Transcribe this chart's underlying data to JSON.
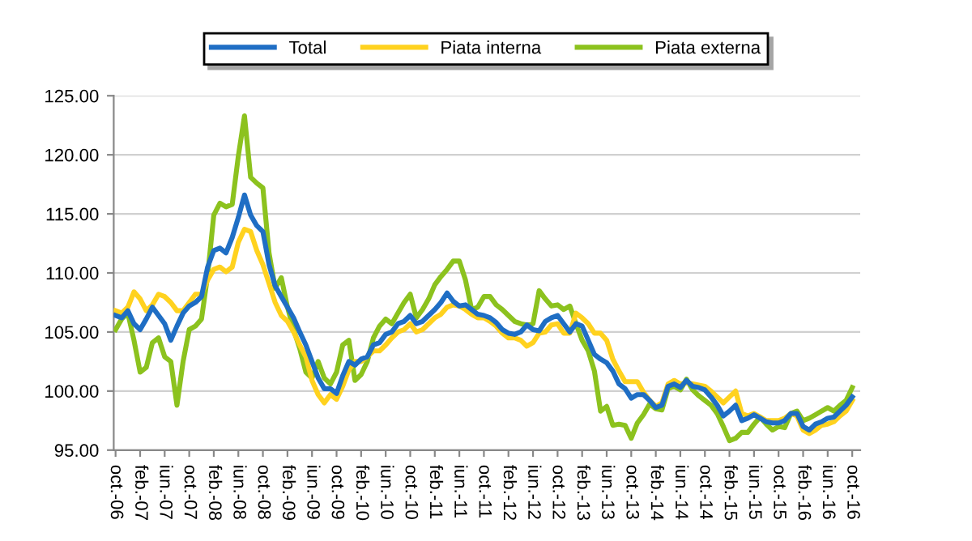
{
  "chart_data": {
    "type": "line",
    "categories": [
      "oct.-06",
      null,
      null,
      null,
      "feb.-07",
      null,
      null,
      null,
      "iun.-07",
      null,
      null,
      null,
      "oct.-07",
      null,
      null,
      null,
      "feb.-08",
      null,
      null,
      null,
      "iun.-08",
      null,
      null,
      null,
      "oct.-08",
      null,
      null,
      null,
      "feb.-09",
      null,
      null,
      null,
      "iun.-09",
      null,
      null,
      null,
      "oct.-09",
      null,
      null,
      null,
      "feb.-10",
      null,
      null,
      null,
      "iun.-10",
      null,
      null,
      null,
      "oct.-10",
      null,
      null,
      null,
      "feb.-11",
      null,
      null,
      null,
      "iun.-11",
      null,
      null,
      null,
      "oct.-11",
      null,
      null,
      null,
      "feb.-12",
      null,
      null,
      null,
      "iun.-12",
      null,
      null,
      null,
      "oct.-12",
      null,
      null,
      null,
      "feb.-13",
      null,
      null,
      null,
      "iun.-13",
      null,
      null,
      null,
      "oct.-13",
      null,
      null,
      null,
      "feb.-14",
      null,
      null,
      null,
      "iun.-14",
      null,
      null,
      null,
      "oct.-14",
      null,
      null,
      null,
      "feb.-15",
      null,
      null,
      null,
      "iun.-15",
      null,
      null,
      null,
      "oct.-15",
      null,
      null,
      null,
      "feb.-16",
      null,
      null,
      null,
      "iun.-16",
      null,
      null,
      null,
      "oct.-16"
    ],
    "series": [
      {
        "name": "Total",
        "color": "#1f6ec4",
        "values": [
          106.4,
          106.2,
          106.8,
          105.7,
          105.2,
          106.1,
          107.1,
          106.4,
          105.7,
          104.3,
          105.5,
          106.6,
          107.2,
          107.5,
          108.0,
          110.5,
          111.9,
          112.1,
          111.7,
          113.0,
          114.7,
          116.6,
          114.9,
          114.0,
          113.5,
          110.7,
          108.9,
          108.0,
          107.1,
          106.2,
          105.0,
          103.9,
          102.5,
          101.1,
          100.2,
          100.2,
          99.8,
          101.3,
          102.5,
          102.2,
          102.7,
          102.9,
          103.9,
          104.1,
          104.8,
          105.0,
          105.7,
          105.9,
          106.4,
          105.7,
          105.9,
          106.4,
          106.9,
          107.5,
          108.3,
          107.6,
          107.2,
          107.3,
          106.9,
          106.5,
          106.4,
          106.2,
          105.8,
          105.2,
          104.9,
          104.8,
          105.0,
          105.6,
          105.2,
          105.1,
          105.9,
          106.2,
          106.4,
          105.7,
          105.0,
          105.7,
          105.5,
          104.3,
          103.1,
          102.7,
          102.4,
          101.7,
          100.6,
          100.2,
          99.4,
          99.7,
          99.7,
          99.2,
          98.6,
          98.8,
          100.4,
          100.6,
          100.3,
          100.9,
          100.4,
          100.3,
          100.1,
          99.5,
          98.8,
          97.9,
          98.3,
          98.8,
          97.5,
          97.7,
          98.0,
          97.7,
          97.4,
          97.3,
          97.3,
          97.5,
          98.1,
          98.1,
          97.0,
          96.7,
          97.2,
          97.4,
          97.7,
          97.8,
          98.3,
          98.8,
          99.5
        ]
      },
      {
        "name": "Piata interna",
        "color": "#ffd21f",
        "values": [
          106.8,
          106.6,
          107.1,
          108.4,
          107.8,
          106.8,
          107.3,
          108.2,
          108.0,
          107.5,
          106.8,
          106.8,
          107.5,
          108.2,
          108.2,
          109.4,
          110.3,
          110.5,
          110.1,
          110.5,
          112.6,
          113.7,
          113.5,
          111.9,
          110.7,
          109.1,
          107.5,
          106.4,
          105.9,
          105.0,
          103.9,
          102.9,
          100.9,
          99.7,
          99.0,
          99.7,
          99.3,
          100.4,
          101.8,
          102.5,
          102.5,
          102.9,
          103.4,
          103.4,
          103.9,
          104.5,
          105.0,
          105.2,
          105.7,
          105.0,
          105.2,
          105.7,
          106.2,
          106.5,
          107.1,
          107.3,
          107.2,
          106.9,
          106.5,
          106.2,
          106.2,
          105.9,
          105.5,
          104.9,
          104.5,
          104.5,
          104.3,
          103.8,
          104.1,
          104.9,
          105.0,
          105.6,
          105.7,
          104.9,
          104.9,
          106.6,
          106.2,
          105.7,
          104.9,
          104.9,
          104.3,
          102.7,
          101.7,
          100.8,
          100.8,
          100.8,
          99.9,
          99.2,
          98.7,
          99.0,
          100.6,
          100.9,
          100.6,
          100.7,
          100.6,
          100.5,
          100.4,
          100.0,
          99.5,
          99.0,
          99.5,
          100.0,
          98.1,
          97.9,
          98.1,
          97.8,
          97.5,
          97.5,
          97.5,
          97.7,
          98.1,
          97.9,
          96.7,
          96.4,
          96.7,
          97.1,
          97.2,
          97.4,
          97.9,
          98.3,
          99.2
        ]
      },
      {
        "name": "Piata externa",
        "color": "#8cc21e",
        "values": [
          105.2,
          106.1,
          106.6,
          104.3,
          101.6,
          102.0,
          104.1,
          104.5,
          102.9,
          102.5,
          98.8,
          102.5,
          105.2,
          105.5,
          106.1,
          109.8,
          114.9,
          115.9,
          115.6,
          115.8,
          119.9,
          123.3,
          118.1,
          117.6,
          117.2,
          111.7,
          108.7,
          109.6,
          107.1,
          105.2,
          103.6,
          101.6,
          101.1,
          102.5,
          101.1,
          100.6,
          101.6,
          103.9,
          104.3,
          100.9,
          101.4,
          102.5,
          104.5,
          105.5,
          106.1,
          105.7,
          106.6,
          107.5,
          108.2,
          106.2,
          106.9,
          107.8,
          109.0,
          109.7,
          110.3,
          111.0,
          111.0,
          109.4,
          106.9,
          107.1,
          108.0,
          108.0,
          107.3,
          106.9,
          106.4,
          105.9,
          105.7,
          105.6,
          105.7,
          108.5,
          107.8,
          107.2,
          107.3,
          106.9,
          107.2,
          105.7,
          104.3,
          103.4,
          101.7,
          98.3,
          98.7,
          97.1,
          97.2,
          97.1,
          96.0,
          97.3,
          98.0,
          98.9,
          98.5,
          98.4,
          100.2,
          100.4,
          100.1,
          101.0,
          100.1,
          99.6,
          99.2,
          98.8,
          98.1,
          97.0,
          95.8,
          96.0,
          96.5,
          96.5,
          97.2,
          97.8,
          97.2,
          96.7,
          97.0,
          96.9,
          98.1,
          98.3,
          97.5,
          97.7,
          98.0,
          98.3,
          98.6,
          98.3,
          98.8,
          99.2,
          100.3
        ]
      }
    ],
    "ylim": [
      95,
      125
    ],
    "yticks": [
      {
        "value": 95,
        "label": "95.00"
      },
      {
        "value": 100,
        "label": "100.00"
      },
      {
        "value": 105,
        "label": "105.00"
      },
      {
        "value": 110,
        "label": "110.00"
      },
      {
        "value": 115,
        "label": "115.00"
      },
      {
        "value": 120,
        "label": "120.00"
      },
      {
        "value": 125,
        "label": "125.00"
      }
    ],
    "grid": "y",
    "legend": "top",
    "marker": "none",
    "line_style": "solid"
  }
}
